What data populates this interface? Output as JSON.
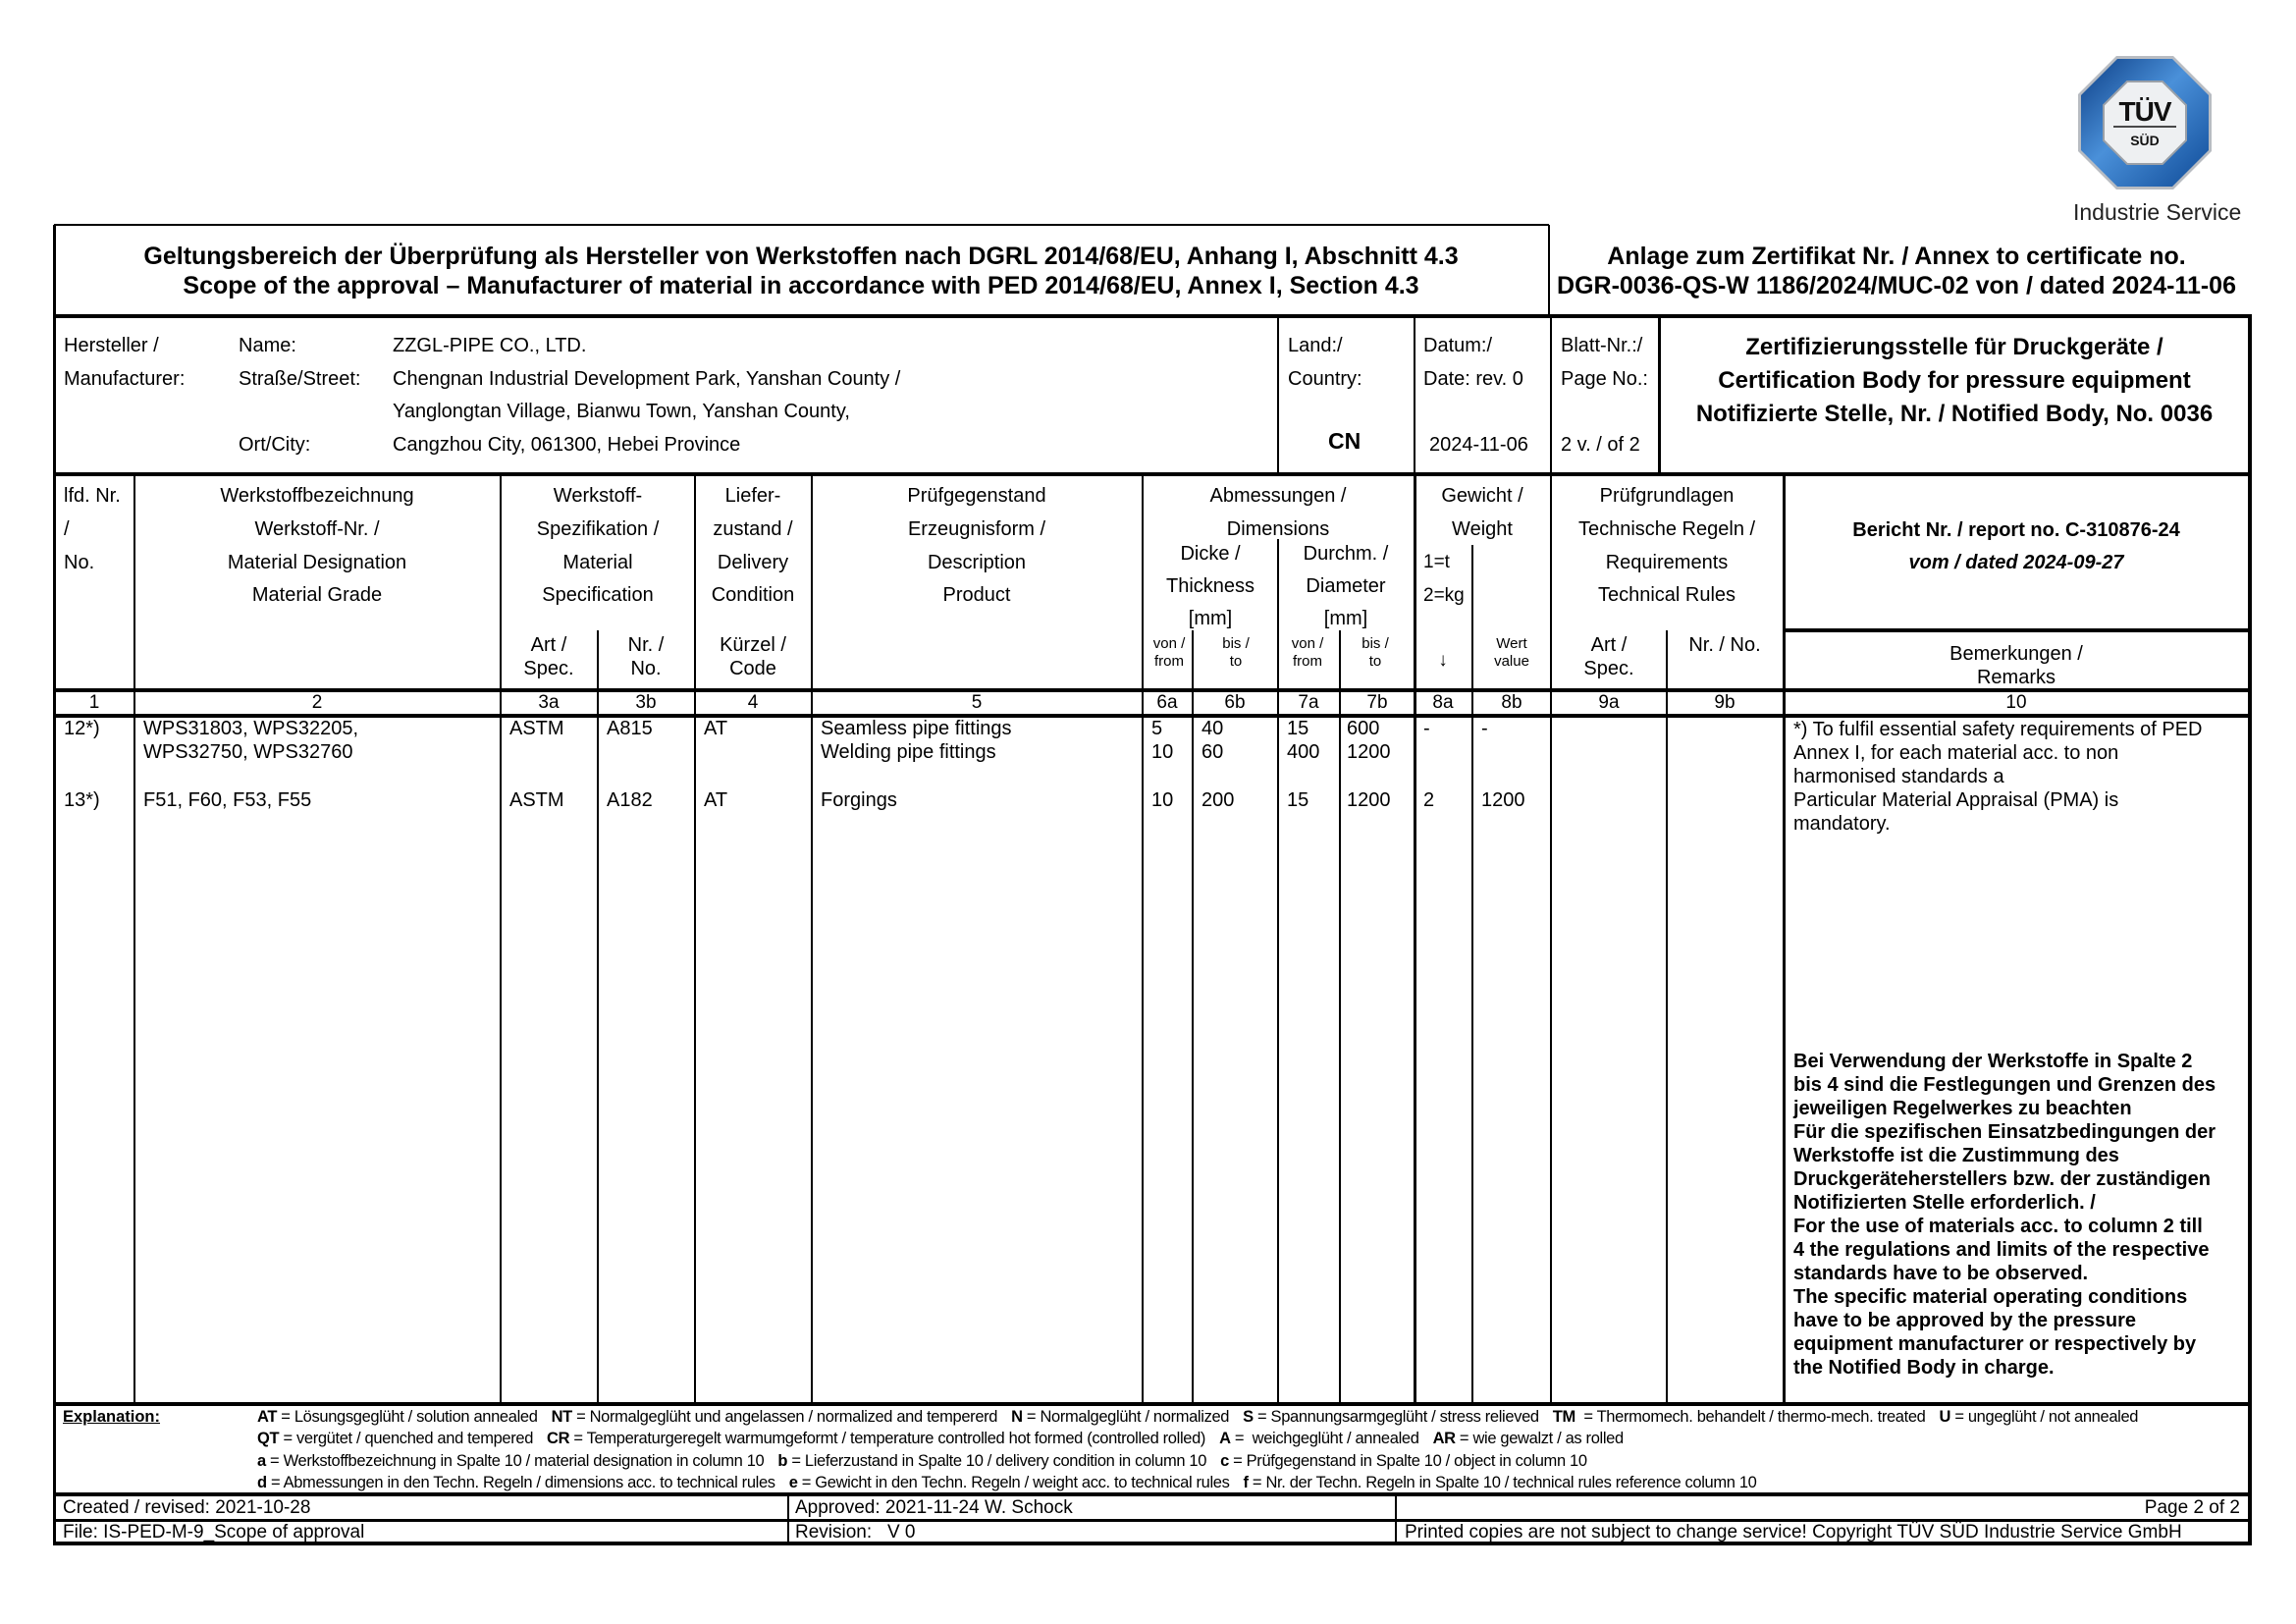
{
  "logo": {
    "brand_top": "TÜV",
    "brand_bottom": "SÜD",
    "subtitle": "Industrie Service",
    "colors": {
      "blue": "#1d5fa8",
      "silver": "#d9dde2"
    }
  },
  "title": {
    "line1": "Geltungsbereich der Überprüfung als Hersteller von Werkstoffen nach DGRL 2014/68/EU, Anhang I, Abschnitt 4.3",
    "line2": "Scope of the approval – Manufacturer of material in accordance with PED 2014/68/EU, Annex I, Section 4.3"
  },
  "annex": {
    "line1": "Anlage zum Zertifikat Nr. / Annex to certificate no.",
    "line2": "DGR-0036-QS-W 1186/2024/MUC-02 von / dated 2024-11-06"
  },
  "manufacturer": {
    "label1": "Hersteller /",
    "label2": "Manufacturer:",
    "name_label": "Name:",
    "name": "ZZGL-PIPE CO., LTD.",
    "street_label": "Straße/Street:",
    "street1": "Chengnan Industrial Development Park, Yanshan County /",
    "street2": "Yanglongtan Village, Bianwu Town, Yanshan County,",
    "city_label": "Ort/City:",
    "city": "Cangzhou City, 061300, Hebei Province",
    "country_label1": "Land:/",
    "country_label2": "Country:",
    "country": "CN",
    "date_label1": "Datum:/",
    "date_label2": "Date: rev. 0",
    "date": "2024-11-06",
    "page_label1": "Blatt-Nr.:/",
    "page_label2": "Page No.:",
    "page": "2 v. / of 2",
    "body1": "Zertifizierungsstelle für Druckgeräte /",
    "body2": "Certification Body for pressure equipment",
    "body3": "Notifizierte Stelle, Nr. / Notified Body, No. 0036"
  },
  "headers": {
    "c1": [
      "lfd. Nr.",
      "/",
      "No."
    ],
    "c2": [
      "Werkstoffbezeichnung",
      "Werkstoff-Nr. /",
      "Material Designation",
      "Material Grade"
    ],
    "c3": [
      "Werkstoff-",
      "Spezifikation /",
      "Material",
      "Specification"
    ],
    "c3a": [
      "Art /",
      "Spec."
    ],
    "c3b": [
      "Nr. /",
      "No."
    ],
    "c4": [
      "Liefer-",
      "zustand /",
      "Delivery",
      "Condition"
    ],
    "c4sub": [
      "Kürzel /",
      "Code"
    ],
    "c5": [
      "Prüfgegenstand",
      "Erzeugnisform /",
      "Description",
      "Product"
    ],
    "dims": [
      "Abmessungen /",
      "Dimensions"
    ],
    "c6": [
      "Dicke /",
      "Thickness",
      "[mm]"
    ],
    "c7": [
      "Durchm. /",
      "Diameter",
      "[mm]"
    ],
    "from": [
      "von /",
      "from"
    ],
    "to": [
      "bis /",
      "to"
    ],
    "c8": [
      "Gewicht /",
      "Weight"
    ],
    "c8a": [
      "1=t",
      "2=kg",
      "↓"
    ],
    "c8b": [
      "Wert",
      "value"
    ],
    "c9": [
      "Prüfgrundlagen",
      "Technische Regeln /",
      "Requirements",
      "Technical Rules"
    ],
    "c9a": [
      "Art /",
      "Spec."
    ],
    "c9b": "Nr. / No.",
    "report": "Bericht Nr. / report no. C-310876-24",
    "report_date": "vom / dated 2024-09-27",
    "c10": [
      "Bemerkungen /",
      "Remarks"
    ],
    "numbers": [
      "1",
      "2",
      "3a",
      "3b",
      "4",
      "5",
      "6a",
      "6b",
      "7a",
      "7b",
      "8a",
      "8b",
      "9a",
      "9b",
      "10"
    ]
  },
  "rows": [
    {
      "no": "12*)",
      "grade": [
        "WPS31803, WPS32205,",
        "WPS32750, WPS32760"
      ],
      "spec": "ASTM",
      "spec_no": "A815",
      "code": "AT",
      "product": [
        "Seamless pipe fittings",
        "Welding pipe fittings"
      ],
      "thk_from": [
        "5",
        "10"
      ],
      "thk_to": [
        "40",
        "60"
      ],
      "dia_from": [
        "15",
        "400"
      ],
      "dia_to": [
        "600",
        "1200"
      ],
      "weight_unit": "-",
      "weight_value": "-"
    },
    {
      "no": "13*)",
      "grade": [
        "F51, F60, F53, F55"
      ],
      "spec": "ASTM",
      "spec_no": "A182",
      "code": "AT",
      "product": [
        "Forgings"
      ],
      "thk_from": [
        "10"
      ],
      "thk_to": [
        "200"
      ],
      "dia_from": [
        "15"
      ],
      "dia_to": [
        "1200"
      ],
      "weight_unit": "2",
      "weight_value": "1200"
    }
  ],
  "remarks": {
    "pma": "*) To fulfil essential safety requirements of PED\nAnnex I, for each material acc. to non\nharmonised standards a\nParticular Material Appraisal (PMA) is\nmandatory.",
    "note": "Bei Verwendung der Werkstoffe in Spalte 2\nbis 4 sind die Festlegungen und Grenzen des\njeweiligen Regelwerkes zu beachten\nFür die spezifischen Einsatzbedingungen der\nWerkstoffe ist die Zustimmung des\nDruckgeräteherstellers bzw. der zuständigen\nNotifizierten Stelle erforderlich. /\nFor the use of materials acc. to column 2 till\n4 the regulations and limits of the respective\nstandards have to be observed.\nThe specific material operating conditions\nhave to be approved by the pressure\nequipment manufacturer or respectively by\nthe Notified Body in charge."
  },
  "explanation": {
    "label": "Explanation:",
    "lines": [
      [
        {
          "code": "AT",
          "text": " = Lösungsgeglüht / solution annealed"
        },
        {
          "code": "NT",
          "text": " = Normalgeglüht und angelassen / normalized and tempererd"
        },
        {
          "code": "N",
          "text": " = Normalgeglüht / normalized"
        },
        {
          "code": "S",
          "text": " = Spannungsarmgeglüht / stress relieved"
        },
        {
          "code": "TM",
          "text": "  = Thermomech. behandelt / thermo-mech. treated"
        },
        {
          "code": "U",
          "text": " = ungeglüht / not annealed"
        }
      ],
      [
        {
          "code": "QT",
          "text": " = vergütet / quenched and tempered"
        },
        {
          "code": "CR",
          "text": " = Temperaturgeregelt warmumgeformt / temperature controlled hot formed (controlled rolled)"
        },
        {
          "code": "A",
          "text": " =  weichgeglüht / annealed"
        },
        {
          "code": "AR",
          "text": " = wie gewalzt / as rolled"
        }
      ],
      [
        {
          "code": "a",
          "text": " = Werkstoffbezeichnung in Spalte 10 / material designation in column 10"
        },
        {
          "code": "b",
          "text": " = Lieferzustand in Spalte 10 / delivery condition in column 10"
        },
        {
          "code": "c",
          "text": " = Prüfgegenstand in Spalte 10 / object in column 10"
        }
      ],
      [
        {
          "code": "d",
          "text": " = Abmessungen in den Techn. Regeln / dimensions acc. to technical rules"
        },
        {
          "code": "e",
          "text": " = Gewicht in den Techn. Regeln / weight acc. to technical rules"
        },
        {
          "code": "f",
          "text": " = Nr. der Techn. Regeln in Spalte 10 / technical rules reference column 10"
        }
      ]
    ]
  },
  "footer": {
    "created": "Created / revised: 2021-10-28",
    "approved": "Approved: 2021-11-24 W. Schock",
    "page": "Page 2 of 2",
    "file": "File: IS-PED-M-9_Scope of approval",
    "revision": "Revision:   V 0",
    "copyright": "Printed copies are not subject to change service! Copyright TÜV SÜD Industrie Service GmbH"
  }
}
